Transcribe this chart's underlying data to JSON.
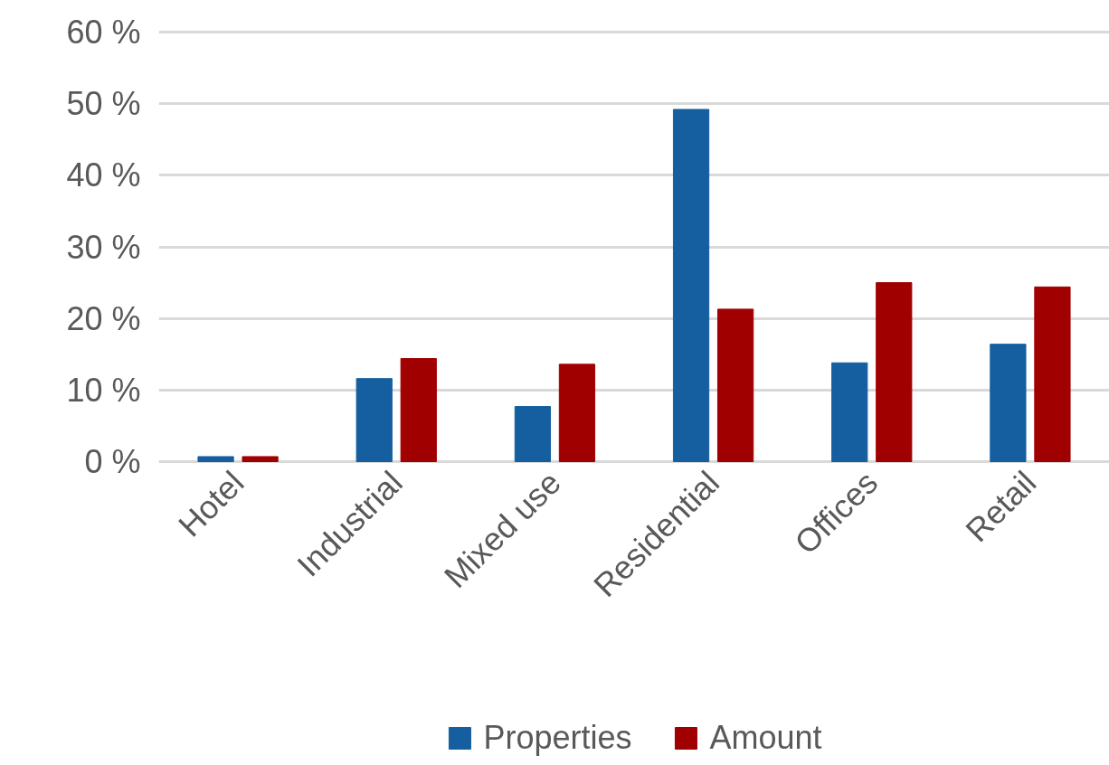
{
  "chart_data": {
    "type": "bar",
    "categories": [
      "Hotel",
      "Industrial",
      "Mixed use",
      "Residential",
      "Offices",
      "Retail"
    ],
    "series": [
      {
        "name": "Properties",
        "color": "#155ea0",
        "values": [
          0.7,
          11.6,
          7.7,
          49.2,
          13.8,
          16.4
        ]
      },
      {
        "name": "Amount",
        "color": "#a00000",
        "values": [
          0.7,
          14.4,
          13.6,
          21.3,
          25.0,
          24.4
        ]
      }
    ],
    "ylim": [
      0,
      60
    ],
    "yticks": [
      {
        "value": 0,
        "label": "0 %"
      },
      {
        "value": 10,
        "label": "10 %"
      },
      {
        "value": 20,
        "label": "20 %"
      },
      {
        "value": 30,
        "label": "30 %"
      },
      {
        "value": 40,
        "label": "40 %"
      },
      {
        "value": 50,
        "label": "50 %"
      },
      {
        "value": 60,
        "label": "60 %"
      }
    ],
    "grid": "y",
    "legend": "bottom"
  }
}
